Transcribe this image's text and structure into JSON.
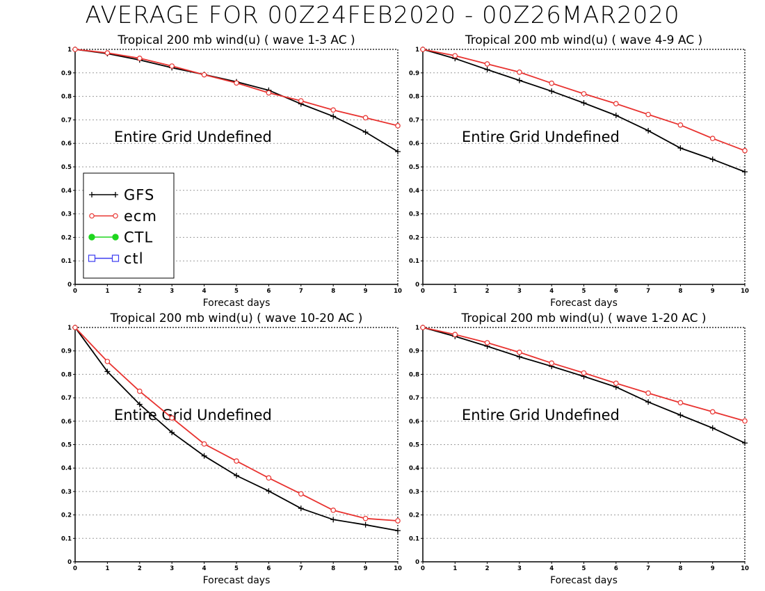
{
  "title": "AVERAGE FOR 00Z24FEB2020 - 00Z26MAR2020",
  "colors": {
    "GFS": "#000000",
    "ecm": "#e8322f",
    "CTL": "#1ed61e",
    "ctl": "#3b3bf0",
    "grid": "#9a9a9a"
  },
  "legend": [
    {
      "name": "GFS",
      "marker": "plus",
      "color": "#000000"
    },
    {
      "name": "ecm",
      "marker": "circle",
      "color": "#e8322f"
    },
    {
      "name": "CTL",
      "marker": "dot",
      "color": "#1ed61e"
    },
    {
      "name": "ctl",
      "marker": "square",
      "color": "#3b3bf0"
    }
  ],
  "chart_data": [
    {
      "type": "line",
      "title": "Tropical 200 mb wind(u) ( wave 1-3 AC )",
      "xlabel": "Forecast days",
      "note": "Entire Grid Undefined",
      "xlim": [
        0,
        10
      ],
      "ylim": [
        0,
        1
      ],
      "x": [
        0,
        1,
        2,
        3,
        4,
        5,
        6,
        7,
        8,
        9,
        10
      ],
      "xticks": [
        "0",
        "1",
        "2",
        "3",
        "4",
        "5",
        "6",
        "7",
        "8",
        "9",
        "10"
      ],
      "yticks": [
        "0",
        "0.1",
        "0.2",
        "0.3",
        "0.4",
        "0.5",
        "0.6",
        "0.7",
        "0.8",
        "0.9",
        "1"
      ],
      "legend": "lower-left",
      "grid": true,
      "series": [
        {
          "name": "GFS",
          "values": [
            1.0,
            0.982,
            0.955,
            0.922,
            0.893,
            0.862,
            0.826,
            0.768,
            0.715,
            0.648,
            0.565
          ]
        },
        {
          "name": "ecm",
          "values": [
            1.0,
            0.985,
            0.962,
            0.929,
            0.892,
            0.857,
            0.815,
            0.781,
            0.742,
            0.709,
            0.675
          ]
        }
      ]
    },
    {
      "type": "line",
      "title": "Tropical 200 mb wind(u) ( wave 4-9 AC )",
      "xlabel": "Forecast days",
      "note": "Entire Grid Undefined",
      "xlim": [
        0,
        10
      ],
      "ylim": [
        0,
        1
      ],
      "x": [
        0,
        1,
        2,
        3,
        4,
        5,
        6,
        7,
        8,
        9,
        10
      ],
      "xticks": [
        "0",
        "1",
        "2",
        "3",
        "4",
        "5",
        "6",
        "7",
        "8",
        "9",
        "10"
      ],
      "yticks": [
        "0",
        "0.1",
        "0.2",
        "0.3",
        "0.4",
        "0.5",
        "0.6",
        "0.7",
        "0.8",
        "0.9",
        "1"
      ],
      "grid": true,
      "series": [
        {
          "name": "GFS",
          "values": [
            1.0,
            0.961,
            0.914,
            0.868,
            0.822,
            0.772,
            0.719,
            0.654,
            0.58,
            0.532,
            0.479
          ]
        },
        {
          "name": "ecm",
          "values": [
            1.0,
            0.973,
            0.938,
            0.903,
            0.856,
            0.811,
            0.769,
            0.723,
            0.678,
            0.621,
            0.569
          ]
        }
      ]
    },
    {
      "type": "line",
      "title": "Tropical 200 mb wind(u) ( wave 10-20 AC )",
      "xlabel": "Forecast days",
      "note": "Entire Grid Undefined",
      "xlim": [
        0,
        10
      ],
      "ylim": [
        0,
        1
      ],
      "x": [
        0,
        1,
        2,
        3,
        4,
        5,
        6,
        7,
        8,
        9,
        10
      ],
      "xticks": [
        "0",
        "1",
        "2",
        "3",
        "4",
        "5",
        "6",
        "7",
        "8",
        "9",
        "10"
      ],
      "yticks": [
        "0",
        "0.1",
        "0.2",
        "0.3",
        "0.4",
        "0.5",
        "0.6",
        "0.7",
        "0.8",
        "0.9",
        "1"
      ],
      "grid": true,
      "series": [
        {
          "name": "GFS",
          "values": [
            1.0,
            0.812,
            0.672,
            0.552,
            0.452,
            0.368,
            0.302,
            0.228,
            0.18,
            0.158,
            0.133
          ]
        },
        {
          "name": "ecm",
          "values": [
            1.0,
            0.855,
            0.728,
            0.614,
            0.503,
            0.43,
            0.358,
            0.29,
            0.22,
            0.185,
            0.175
          ]
        }
      ]
    },
    {
      "type": "line",
      "title": "Tropical 200 mb wind(u) ( wave 1-20 AC )",
      "xlabel": "Forecast days",
      "note": "Entire Grid Undefined",
      "xlim": [
        0,
        10
      ],
      "ylim": [
        0,
        1
      ],
      "x": [
        0,
        1,
        2,
        3,
        4,
        5,
        6,
        7,
        8,
        9,
        10
      ],
      "xticks": [
        "0",
        "1",
        "2",
        "3",
        "4",
        "5",
        "6",
        "7",
        "8",
        "9",
        "10"
      ],
      "yticks": [
        "0",
        "0.1",
        "0.2",
        "0.3",
        "0.4",
        "0.5",
        "0.6",
        "0.7",
        "0.8",
        "0.9",
        "1"
      ],
      "grid": true,
      "series": [
        {
          "name": "GFS",
          "values": [
            1.0,
            0.962,
            0.92,
            0.875,
            0.834,
            0.791,
            0.746,
            0.682,
            0.626,
            0.571,
            0.507
          ]
        },
        {
          "name": "ecm",
          "values": [
            1.0,
            0.97,
            0.935,
            0.894,
            0.848,
            0.806,
            0.762,
            0.72,
            0.679,
            0.64,
            0.601
          ]
        }
      ]
    }
  ]
}
